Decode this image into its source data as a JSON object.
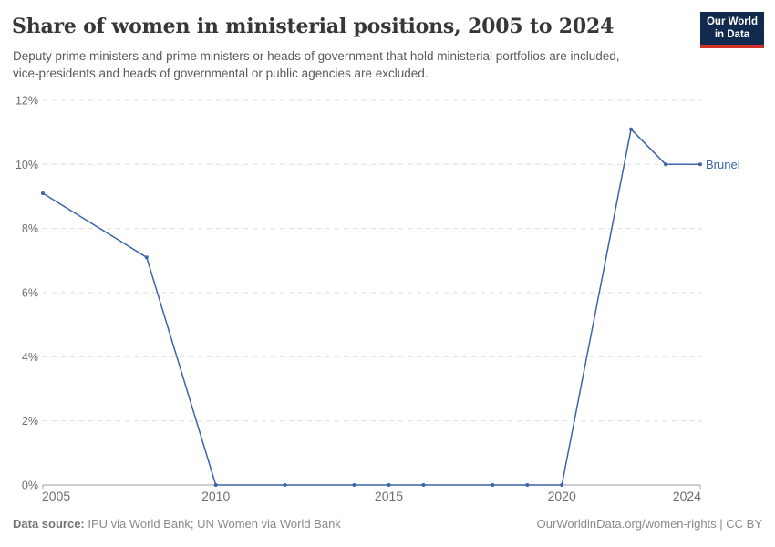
{
  "header": {
    "title": "Share of women in ministerial positions, 2005 to 2024",
    "subtitle": "Deputy prime ministers and prime ministers or heads of government that hold ministerial portfolios are included, vice-presidents and heads of governmental or public agencies are excluded.",
    "logo": {
      "line1": "Our World",
      "line2": "in Data"
    }
  },
  "chart_data": {
    "type": "line",
    "title": "Share of women in ministerial positions, 2005 to 2024",
    "xlabel": "",
    "ylabel": "",
    "xlim": [
      2005,
      2024
    ],
    "ylim": [
      0,
      12
    ],
    "xticks": [
      2005,
      2010,
      2015,
      2020,
      2024
    ],
    "yticks": [
      0,
      2,
      4,
      6,
      8,
      10,
      12
    ],
    "y_tick_suffix": "%",
    "grid": "horizontal-dashed",
    "legend_position": "end-of-line",
    "series": [
      {
        "name": "Brunei",
        "color": "#3d63a8",
        "x": [
          2005,
          2008,
          2010,
          2012,
          2014,
          2015,
          2016,
          2018,
          2019,
          2020,
          2022,
          2023,
          2024
        ],
        "y": [
          9.1,
          7.1,
          0,
          0,
          0,
          0,
          0,
          0,
          0,
          0,
          11.1,
          10,
          10
        ]
      }
    ]
  },
  "footer": {
    "source_label": "Data source:",
    "source_value": "IPU via World Bank; UN Women via World Bank",
    "credit": "OurWorldinData.org/women-rights | CC BY"
  },
  "colors": {
    "line": "#3d63a8",
    "grid": "#dcdcdc",
    "axis": "#9e9e9e",
    "tick_text": "#6e6e6e",
    "logo_bg": "#12294e",
    "logo_red": "#d13328"
  }
}
